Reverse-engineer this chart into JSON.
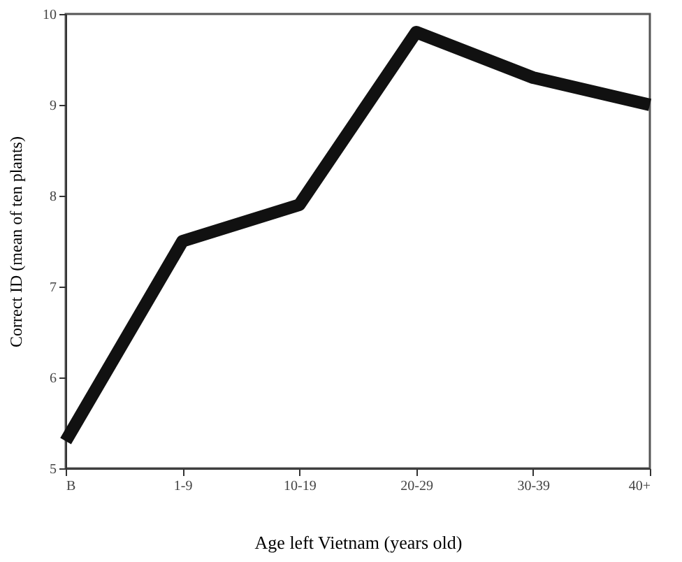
{
  "chart_data": {
    "type": "line",
    "xlabel": "Age left Vietnam (years old)",
    "ylabel": "Correct ID (mean of ten plants)",
    "categories": [
      "B",
      "1-9",
      "10-19",
      "20-29",
      "30-39",
      "40+"
    ],
    "series": [
      {
        "color": "#111111",
        "values": [
          5.3,
          7.5,
          7.9,
          9.8,
          9.3,
          9.0
        ]
      }
    ],
    "ylim": [
      5,
      10
    ],
    "yticks": [
      5,
      6,
      7,
      8,
      9,
      10
    ],
    "grid": false,
    "marker": "none",
    "line_style": "solid"
  }
}
